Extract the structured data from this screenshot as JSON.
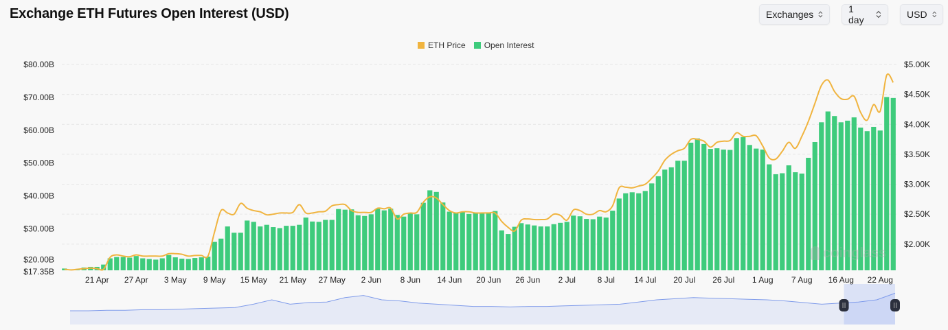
{
  "header": {
    "title": "Exchange ETH Futures Open Interest (USD)",
    "selects": [
      {
        "label": "Exchanges"
      },
      {
        "label": "1 day"
      },
      {
        "label": "USD"
      }
    ]
  },
  "watermark": "coinglass",
  "chart_data": {
    "type": "bar+line",
    "title": "Exchange ETH Futures Open Interest (USD)",
    "legend_position": "top-center",
    "grid": true,
    "colors": {
      "ETH Price": "#f0b43f",
      "Open Interest": "#3ecb7c"
    },
    "x_tick_labels": [
      "21 Apr",
      "27 Apr",
      "3 May",
      "9 May",
      "15 May",
      "21 May",
      "27 May",
      "2 Jun",
      "8 Jun",
      "14 Jun",
      "20 Jun",
      "26 Jun",
      "2 Jul",
      "8 Jul",
      "14 Jul",
      "20 Jul",
      "26 Jul",
      "1 Aug",
      "7 Aug",
      "16 Aug",
      "22 Aug"
    ],
    "y_left": {
      "ticks": [
        "$80.00B",
        "$70.00B",
        "$60.00B",
        "$50.00B",
        "$40.00B",
        "$30.00B",
        "$20.00B",
        "$17.35B"
      ],
      "range": [
        17.35,
        80
      ],
      "unit": "B USD"
    },
    "y_right": {
      "ticks": [
        "$5.00K",
        "$4.50K",
        "$4.00K",
        "$3.50K",
        "$3.00K",
        "$2.50K",
        "$2.00K"
      ],
      "range": [
        1.5625,
        5.0
      ],
      "unit": "K USD"
    },
    "series": [
      {
        "name": "Open Interest",
        "type": "bar",
        "axis": "left",
        "values": [
          17.9,
          17.5,
          17.5,
          18.2,
          18.4,
          18.4,
          19.1,
          21.0,
          21.4,
          21.4,
          21.2,
          21.7,
          21.0,
          20.8,
          20.6,
          21.0,
          22.0,
          21.3,
          20.9,
          20.8,
          21.1,
          21.3,
          21.5,
          26.0,
          27.0,
          30.7,
          28.8,
          28.8,
          32.5,
          32.1,
          30.7,
          31.2,
          30.5,
          30.2,
          30.9,
          30.9,
          31.2,
          33.4,
          32.2,
          32.1,
          32.7,
          32.7,
          36.0,
          35.8,
          35.9,
          34.1,
          33.9,
          34.4,
          36.1,
          35.6,
          36.1,
          34.2,
          33.7,
          34.9,
          34.4,
          37.9,
          41.7,
          41.2,
          38.0,
          35.2,
          34.8,
          35.0,
          34.5,
          35.0,
          34.7,
          34.8,
          35.4,
          29.5,
          28.4,
          30.6,
          31.7,
          31.3,
          31.0,
          30.7,
          30.7,
          31.4,
          31.8,
          32.1,
          34.0,
          33.8,
          33.0,
          32.9,
          33.7,
          33.4,
          35.5,
          39.2,
          40.8,
          41.1,
          40.8,
          41.5,
          43.8,
          46.0,
          48.0,
          48.7,
          50.7,
          50.7,
          56.2,
          57.5,
          55.8,
          54.3,
          54.5,
          54.1,
          54.0,
          57.6,
          57.9,
          55.5,
          54.4,
          54.1,
          49.6,
          46.6,
          46.9,
          49.3,
          47.2,
          46.8,
          51.6,
          56.4,
          62.4,
          65.7,
          64.3,
          62.4,
          62.9,
          63.9,
          60.8,
          59.7,
          61.0,
          59.9,
          70.1,
          69.8
        ]
      },
      {
        "name": "ETH Price",
        "type": "line",
        "axis": "right",
        "values": [
          1.58,
          1.57,
          1.58,
          1.59,
          1.6,
          1.59,
          1.58,
          1.78,
          1.82,
          1.8,
          1.79,
          1.82,
          1.8,
          1.8,
          1.8,
          1.8,
          1.84,
          1.84,
          1.83,
          1.8,
          1.81,
          1.81,
          1.8,
          2.2,
          2.56,
          2.52,
          2.5,
          2.68,
          2.6,
          2.56,
          2.54,
          2.49,
          2.5,
          2.52,
          2.52,
          2.53,
          2.66,
          2.52,
          2.52,
          2.54,
          2.55,
          2.64,
          2.66,
          2.66,
          2.56,
          2.53,
          2.53,
          2.53,
          2.6,
          2.59,
          2.6,
          2.42,
          2.5,
          2.52,
          2.53,
          2.7,
          2.79,
          2.77,
          2.66,
          2.56,
          2.52,
          2.54,
          2.54,
          2.52,
          2.52,
          2.52,
          2.52,
          2.38,
          2.28,
          2.22,
          2.4,
          2.42,
          2.41,
          2.41,
          2.42,
          2.5,
          2.48,
          2.4,
          2.57,
          2.56,
          2.5,
          2.5,
          2.56,
          2.54,
          2.64,
          2.94,
          2.95,
          2.94,
          2.97,
          3.0,
          3.1,
          3.22,
          3.4,
          3.5,
          3.56,
          3.6,
          3.75,
          3.75,
          3.72,
          3.62,
          3.7,
          3.72,
          3.73,
          3.86,
          3.8,
          3.8,
          3.81,
          3.64,
          3.44,
          3.42,
          3.55,
          3.7,
          3.6,
          3.8,
          4.05,
          4.35,
          4.65,
          4.74,
          4.55,
          4.43,
          4.42,
          4.47,
          4.2,
          4.07,
          4.33,
          4.22,
          4.82,
          4.7
        ]
      }
    ]
  },
  "navigator": {
    "selection_range": [
      0.938,
      1.0
    ],
    "series": [
      10,
      10,
      11,
      11,
      12,
      12,
      13,
      14,
      15,
      16,
      22,
      30,
      22,
      25,
      26,
      34,
      38,
      30,
      28,
      24,
      22,
      20,
      18,
      18,
      17,
      18,
      18,
      19,
      20,
      21,
      22,
      26,
      30,
      32,
      34,
      33,
      32,
      31,
      30,
      28,
      25,
      22,
      24,
      26,
      30,
      42
    ]
  }
}
